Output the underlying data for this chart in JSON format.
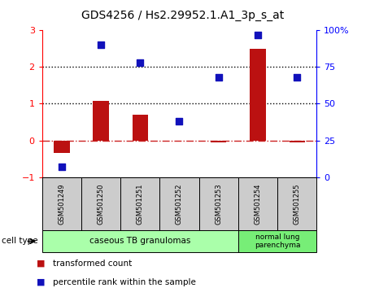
{
  "title": "GDS4256 / Hs2.29952.1.A1_3p_s_at",
  "samples": [
    "GSM501249",
    "GSM501250",
    "GSM501251",
    "GSM501252",
    "GSM501253",
    "GSM501254",
    "GSM501255"
  ],
  "transformed_count": [
    -0.35,
    1.08,
    0.7,
    -0.02,
    -0.05,
    2.5,
    -0.05
  ],
  "percentile_rank": [
    7,
    90,
    78,
    38,
    68,
    97,
    68
  ],
  "ylim_left": [
    -1,
    3
  ],
  "ylim_right": [
    0,
    100
  ],
  "yticks_left": [
    -1,
    0,
    1,
    2,
    3
  ],
  "yticks_right": [
    0,
    25,
    50,
    75,
    100
  ],
  "ytick_labels_right": [
    "0",
    "25",
    "50",
    "75",
    "100%"
  ],
  "bar_color": "#bb1111",
  "scatter_color": "#1111bb",
  "dashed_line_color": "#cc2222",
  "group0_color": "#aaffaa",
  "group1_color": "#77ee77",
  "sample_box_color": "#cccccc",
  "groups": [
    {
      "label": "caseous TB granulomas",
      "n_samples": 5
    },
    {
      "label": "normal lung\nparenchyma",
      "n_samples": 2
    }
  ],
  "cell_type_label": "cell type",
  "legend_items": [
    {
      "color": "#bb1111",
      "label": "transformed count"
    },
    {
      "color": "#1111bb",
      "label": "percentile rank within the sample"
    }
  ],
  "bar_width": 0.4,
  "figsize": [
    4.5,
    3.54
  ],
  "dpi": 100
}
